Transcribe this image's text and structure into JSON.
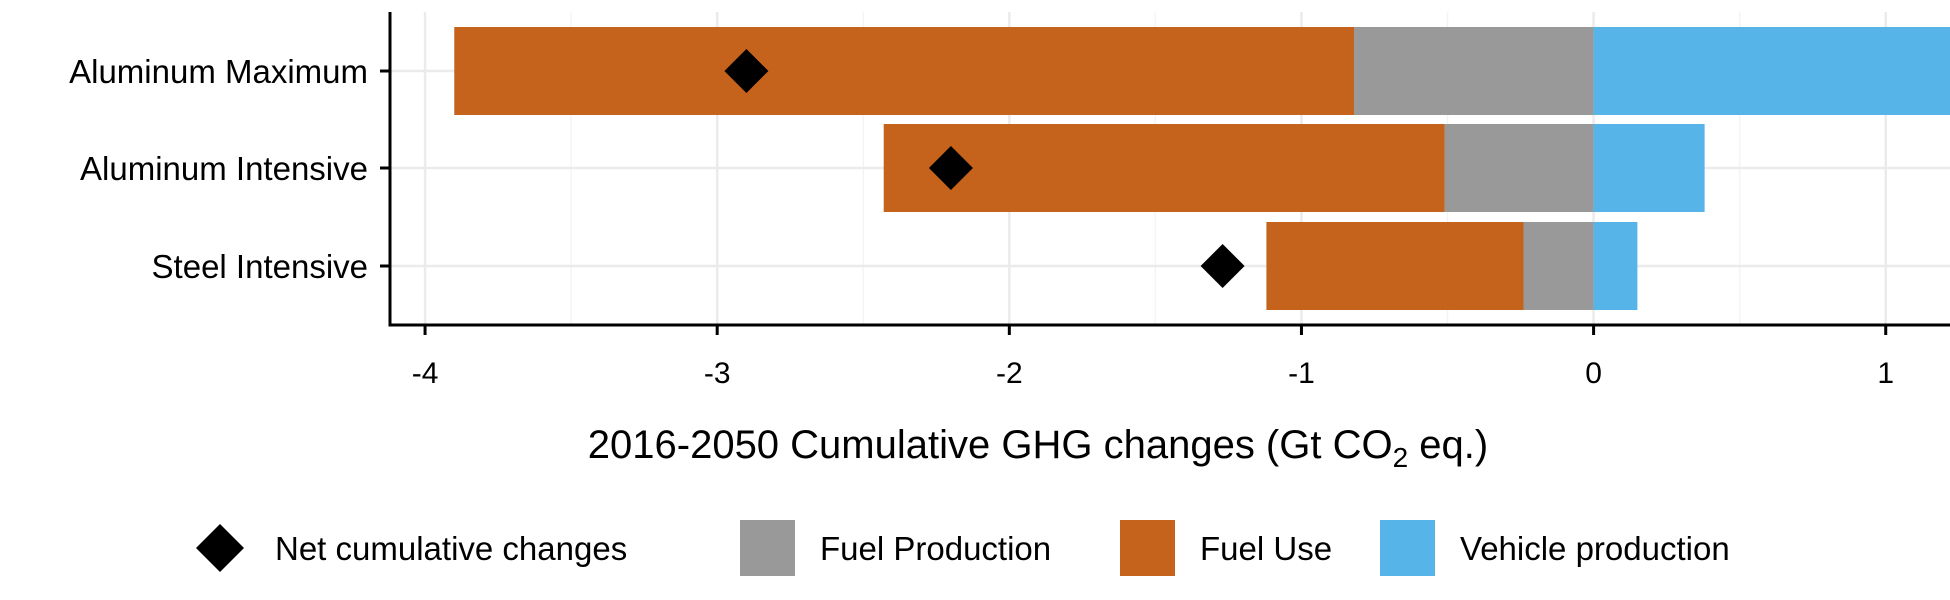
{
  "chart_data": {
    "type": "bar",
    "orientation": "horizontal",
    "stacked": "diverging",
    "categories": [
      "Aluminum Maximum",
      "Aluminum Intensive",
      "Steel Intensive"
    ],
    "series": [
      {
        "name": "Fuel Production",
        "color": "#999999",
        "values": [
          -0.82,
          -0.51,
          -0.24
        ]
      },
      {
        "name": "Fuel Use",
        "color": "#C5631D",
        "values": [
          -3.08,
          -1.92,
          -0.88
        ]
      },
      {
        "name": "Vehicle production",
        "color": "#56B4E9",
        "values": [
          1.32,
          0.38,
          0.15
        ]
      }
    ],
    "net": {
      "name": "Net cumulative changes",
      "marker": "diamond",
      "color": "#000000",
      "values": [
        -2.9,
        -2.2,
        -1.27
      ]
    },
    "xlabel_main": "2016-2050 Cumulative GHG changes (Gt CO",
    "xlabel_sub": "2",
    "xlabel_tail": " eq.)",
    "xticks": [
      "-4",
      "-3",
      "-2",
      "-1",
      "0",
      "1"
    ],
    "xtick_values": [
      -4,
      -3,
      -2,
      -1,
      0,
      1
    ],
    "xlim": [
      -4.12,
      1.22
    ],
    "grid": true,
    "legend_position": "bottom"
  }
}
